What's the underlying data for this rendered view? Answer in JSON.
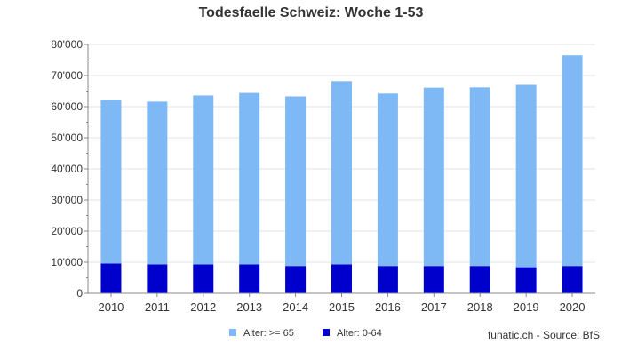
{
  "chart_data": {
    "type": "bar",
    "stacked": true,
    "title": "Todesfaelle Schweiz: Woche 1-53",
    "xlabel": "",
    "ylabel": "",
    "categories": [
      "2010",
      "2011",
      "2012",
      "2013",
      "2014",
      "2015",
      "2016",
      "2017",
      "2018",
      "2019",
      "2020"
    ],
    "series": [
      {
        "name": "Alter: 0-64",
        "color": "#0000cc",
        "values": [
          9600,
          9300,
          9300,
          9300,
          8800,
          9300,
          8800,
          8800,
          8800,
          8400,
          8800
        ]
      },
      {
        "name": "Alter: >= 65",
        "color": "#7fb9f5",
        "values": [
          52600,
          52300,
          54300,
          55100,
          54500,
          58900,
          55400,
          57300,
          57400,
          58600,
          67700
        ]
      }
    ],
    "ylim": [
      0,
      80000
    ],
    "yticks": [
      0,
      10000,
      20000,
      30000,
      40000,
      50000,
      60000,
      70000,
      80000
    ],
    "ytick_labels": [
      "0",
      "10'000",
      "20'000",
      "30'000",
      "40'000",
      "50'000",
      "60'000",
      "70'000",
      "80'000"
    ],
    "grid": true,
    "legend_position": "bottom-center",
    "legend_order": [
      "Alter: >= 65",
      "Alter: 0-64"
    ]
  },
  "source_note": "funatic.ch - Source: BfS",
  "colors": {
    "axis": "#888888",
    "grid": "#e3e3e3",
    "text": "#333333"
  }
}
